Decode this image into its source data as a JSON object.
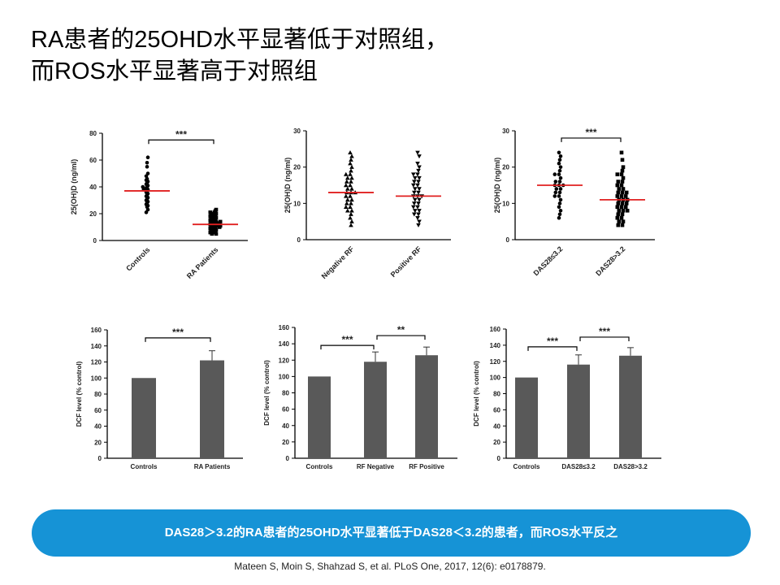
{
  "slide": {
    "title_line1": "RA患者的25OHD水平显著低于对照组，",
    "title_line2": "而ROS水平显著高于对照组",
    "banner": "DAS28＞3.2的RA患者的25OHD水平显著低于DAS28＜3.2的患者，而ROS水平反之",
    "citation": "Mateen S, Moin S, Shahzad S, et al.  PLoS One, 2017, 12(6): e0178879."
  },
  "colors": {
    "banner": "#1693d6",
    "median_line": "#e02020",
    "bar": "#595959",
    "points": "#000000"
  },
  "chart_data": [
    {
      "type": "scatter",
      "ylabel": "25(OH)D (ng/ml)",
      "ylim": [
        0,
        80
      ],
      "yticks": [
        0,
        20,
        40,
        60,
        80
      ],
      "categories": [
        "Controls",
        "RA Patients"
      ],
      "series": [
        {
          "marker": "circle",
          "median": 37,
          "values": [
            62,
            58,
            55,
            50,
            48,
            46,
            45,
            44,
            43,
            42,
            41,
            40,
            40,
            39,
            38,
            38,
            37,
            36,
            35,
            34,
            33,
            32,
            31,
            30,
            29,
            28,
            27,
            26,
            25,
            23,
            21
          ]
        },
        {
          "marker": "square",
          "median": 12,
          "values": [
            23,
            22,
            21,
            21,
            20,
            20,
            19,
            19,
            18,
            18,
            17,
            17,
            16,
            16,
            15,
            15,
            14,
            14,
            14,
            13,
            13,
            13,
            12,
            12,
            12,
            11,
            11,
            11,
            10,
            10,
            10,
            9,
            9,
            8,
            8,
            7,
            7,
            6,
            6,
            5,
            5
          ]
        }
      ],
      "annotations": [
        {
          "text": "***",
          "from": 0,
          "to": 1,
          "y": 75
        }
      ]
    },
    {
      "type": "scatter",
      "ylabel": "25(OH)D (ng/ml)",
      "ylim": [
        0,
        30
      ],
      "yticks": [
        0,
        10,
        20,
        30
      ],
      "categories": [
        "Negative RF",
        "Positive RF"
      ],
      "series": [
        {
          "marker": "triangle-up",
          "median": 13,
          "values": [
            24,
            23,
            22,
            21,
            20,
            19,
            18,
            18,
            17,
            17,
            16,
            16,
            15,
            15,
            14,
            14,
            13,
            13,
            13,
            12,
            12,
            11,
            11,
            10,
            10,
            9,
            9,
            8,
            8,
            7,
            6,
            5,
            4
          ]
        },
        {
          "marker": "triangle-down",
          "median": 12,
          "values": [
            24,
            23,
            21,
            20,
            19,
            18,
            18,
            17,
            17,
            16,
            16,
            15,
            15,
            14,
            14,
            13,
            13,
            12,
            12,
            12,
            11,
            11,
            10,
            10,
            9,
            9,
            8,
            8,
            7,
            7,
            6,
            5,
            4
          ]
        }
      ],
      "annotations": []
    },
    {
      "type": "scatter",
      "ylabel": "25(OH)D (ng/ml)",
      "ylim": [
        0,
        30
      ],
      "yticks": [
        0,
        10,
        20,
        30
      ],
      "categories": [
        "DAS28≤3.2",
        "DAS28>3.2"
      ],
      "series": [
        {
          "marker": "circle",
          "median": 15,
          "values": [
            24,
            23,
            22,
            21,
            20,
            19,
            18,
            18,
            17,
            16,
            16,
            15,
            15,
            15,
            14,
            14,
            13,
            13,
            12,
            12,
            11,
            10,
            9,
            8,
            7,
            6
          ]
        },
        {
          "marker": "square",
          "median": 11,
          "values": [
            24,
            22,
            20,
            19,
            18,
            18,
            17,
            16,
            16,
            15,
            15,
            14,
            14,
            13,
            13,
            13,
            12,
            12,
            12,
            11,
            11,
            11,
            10,
            10,
            10,
            9,
            9,
            9,
            8,
            8,
            8,
            7,
            7,
            6,
            6,
            5,
            5,
            4,
            4
          ]
        }
      ],
      "annotations": [
        {
          "text": "***",
          "from": 0,
          "to": 1,
          "y": 28
        }
      ]
    },
    {
      "type": "bar",
      "ylabel": "DCF level (% control)",
      "ylim": [
        0,
        160
      ],
      "yticks": [
        0,
        20,
        40,
        60,
        80,
        100,
        120,
        140,
        160
      ],
      "categories": [
        "Controls",
        "RA Patients"
      ],
      "values": [
        100,
        122
      ],
      "errors": [
        0,
        12
      ],
      "annotations": [
        {
          "text": "***",
          "from": 0,
          "to": 1,
          "y": 150
        }
      ]
    },
    {
      "type": "bar",
      "ylabel": "DCF level (% control)",
      "ylim": [
        0,
        160
      ],
      "yticks": [
        0,
        20,
        40,
        60,
        80,
        100,
        120,
        140,
        160
      ],
      "categories": [
        "Controls",
        "RF Negative",
        "RF Positive"
      ],
      "values": [
        100,
        118,
        126
      ],
      "errors": [
        0,
        12,
        10
      ],
      "annotations": [
        {
          "text": "***",
          "from": 0,
          "to": 1,
          "y": 138
        },
        {
          "text": "**",
          "from": 1,
          "to": 2,
          "y": 150
        }
      ]
    },
    {
      "type": "bar",
      "ylabel": "DCF level (% control)",
      "ylim": [
        0,
        160
      ],
      "yticks": [
        0,
        20,
        40,
        60,
        80,
        100,
        120,
        140,
        160
      ],
      "categories": [
        "Controls",
        "DAS28≤3.2",
        "DAS28>3.2"
      ],
      "values": [
        100,
        116,
        127
      ],
      "errors": [
        0,
        12,
        10
      ],
      "annotations": [
        {
          "text": "***",
          "from": 0,
          "to": 1,
          "y": 138
        },
        {
          "text": "***",
          "from": 1,
          "to": 2,
          "y": 150
        }
      ]
    }
  ]
}
